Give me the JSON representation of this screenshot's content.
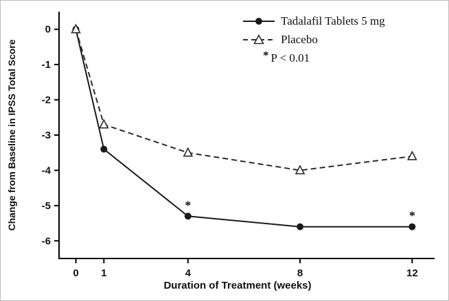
{
  "figure": {
    "background": "#ffffff",
    "line_color": "#1a1a1a"
  },
  "chart_data": {
    "type": "line",
    "title": "",
    "xlabel": "Duration of Treatment (weeks)",
    "ylabel": "Change from Baseline in IPSS Total Score",
    "x": [
      0,
      1,
      4,
      8,
      12
    ],
    "series": [
      {
        "name": "Tadalafil Tablets 5 mg",
        "values": [
          0,
          -3.4,
          -5.3,
          -5.6,
          -5.6
        ],
        "line": "solid",
        "marker": "circle-filled",
        "color": "#1a1a1a"
      },
      {
        "name": "Placebo",
        "values": [
          0,
          -2.7,
          -3.5,
          -4.0,
          -3.6
        ],
        "line": "dashed",
        "marker": "triangle-open",
        "color": "#2b2b2b"
      }
    ],
    "annotations": [
      {
        "x": 4,
        "series": 0,
        "text": "*"
      },
      {
        "x": 12,
        "series": 0,
        "text": "*"
      }
    ],
    "note": {
      "symbol": "*",
      "text": "P < 0.01"
    },
    "xticks": [
      0,
      1,
      4,
      8,
      12
    ],
    "yticks": [
      0,
      -1,
      -2,
      -3,
      -4,
      -5,
      -6
    ],
    "xlim": [
      -0.6,
      12.8
    ],
    "ylim": [
      -6.5,
      0.5
    ],
    "grid": false,
    "legend_position": "top-right"
  }
}
